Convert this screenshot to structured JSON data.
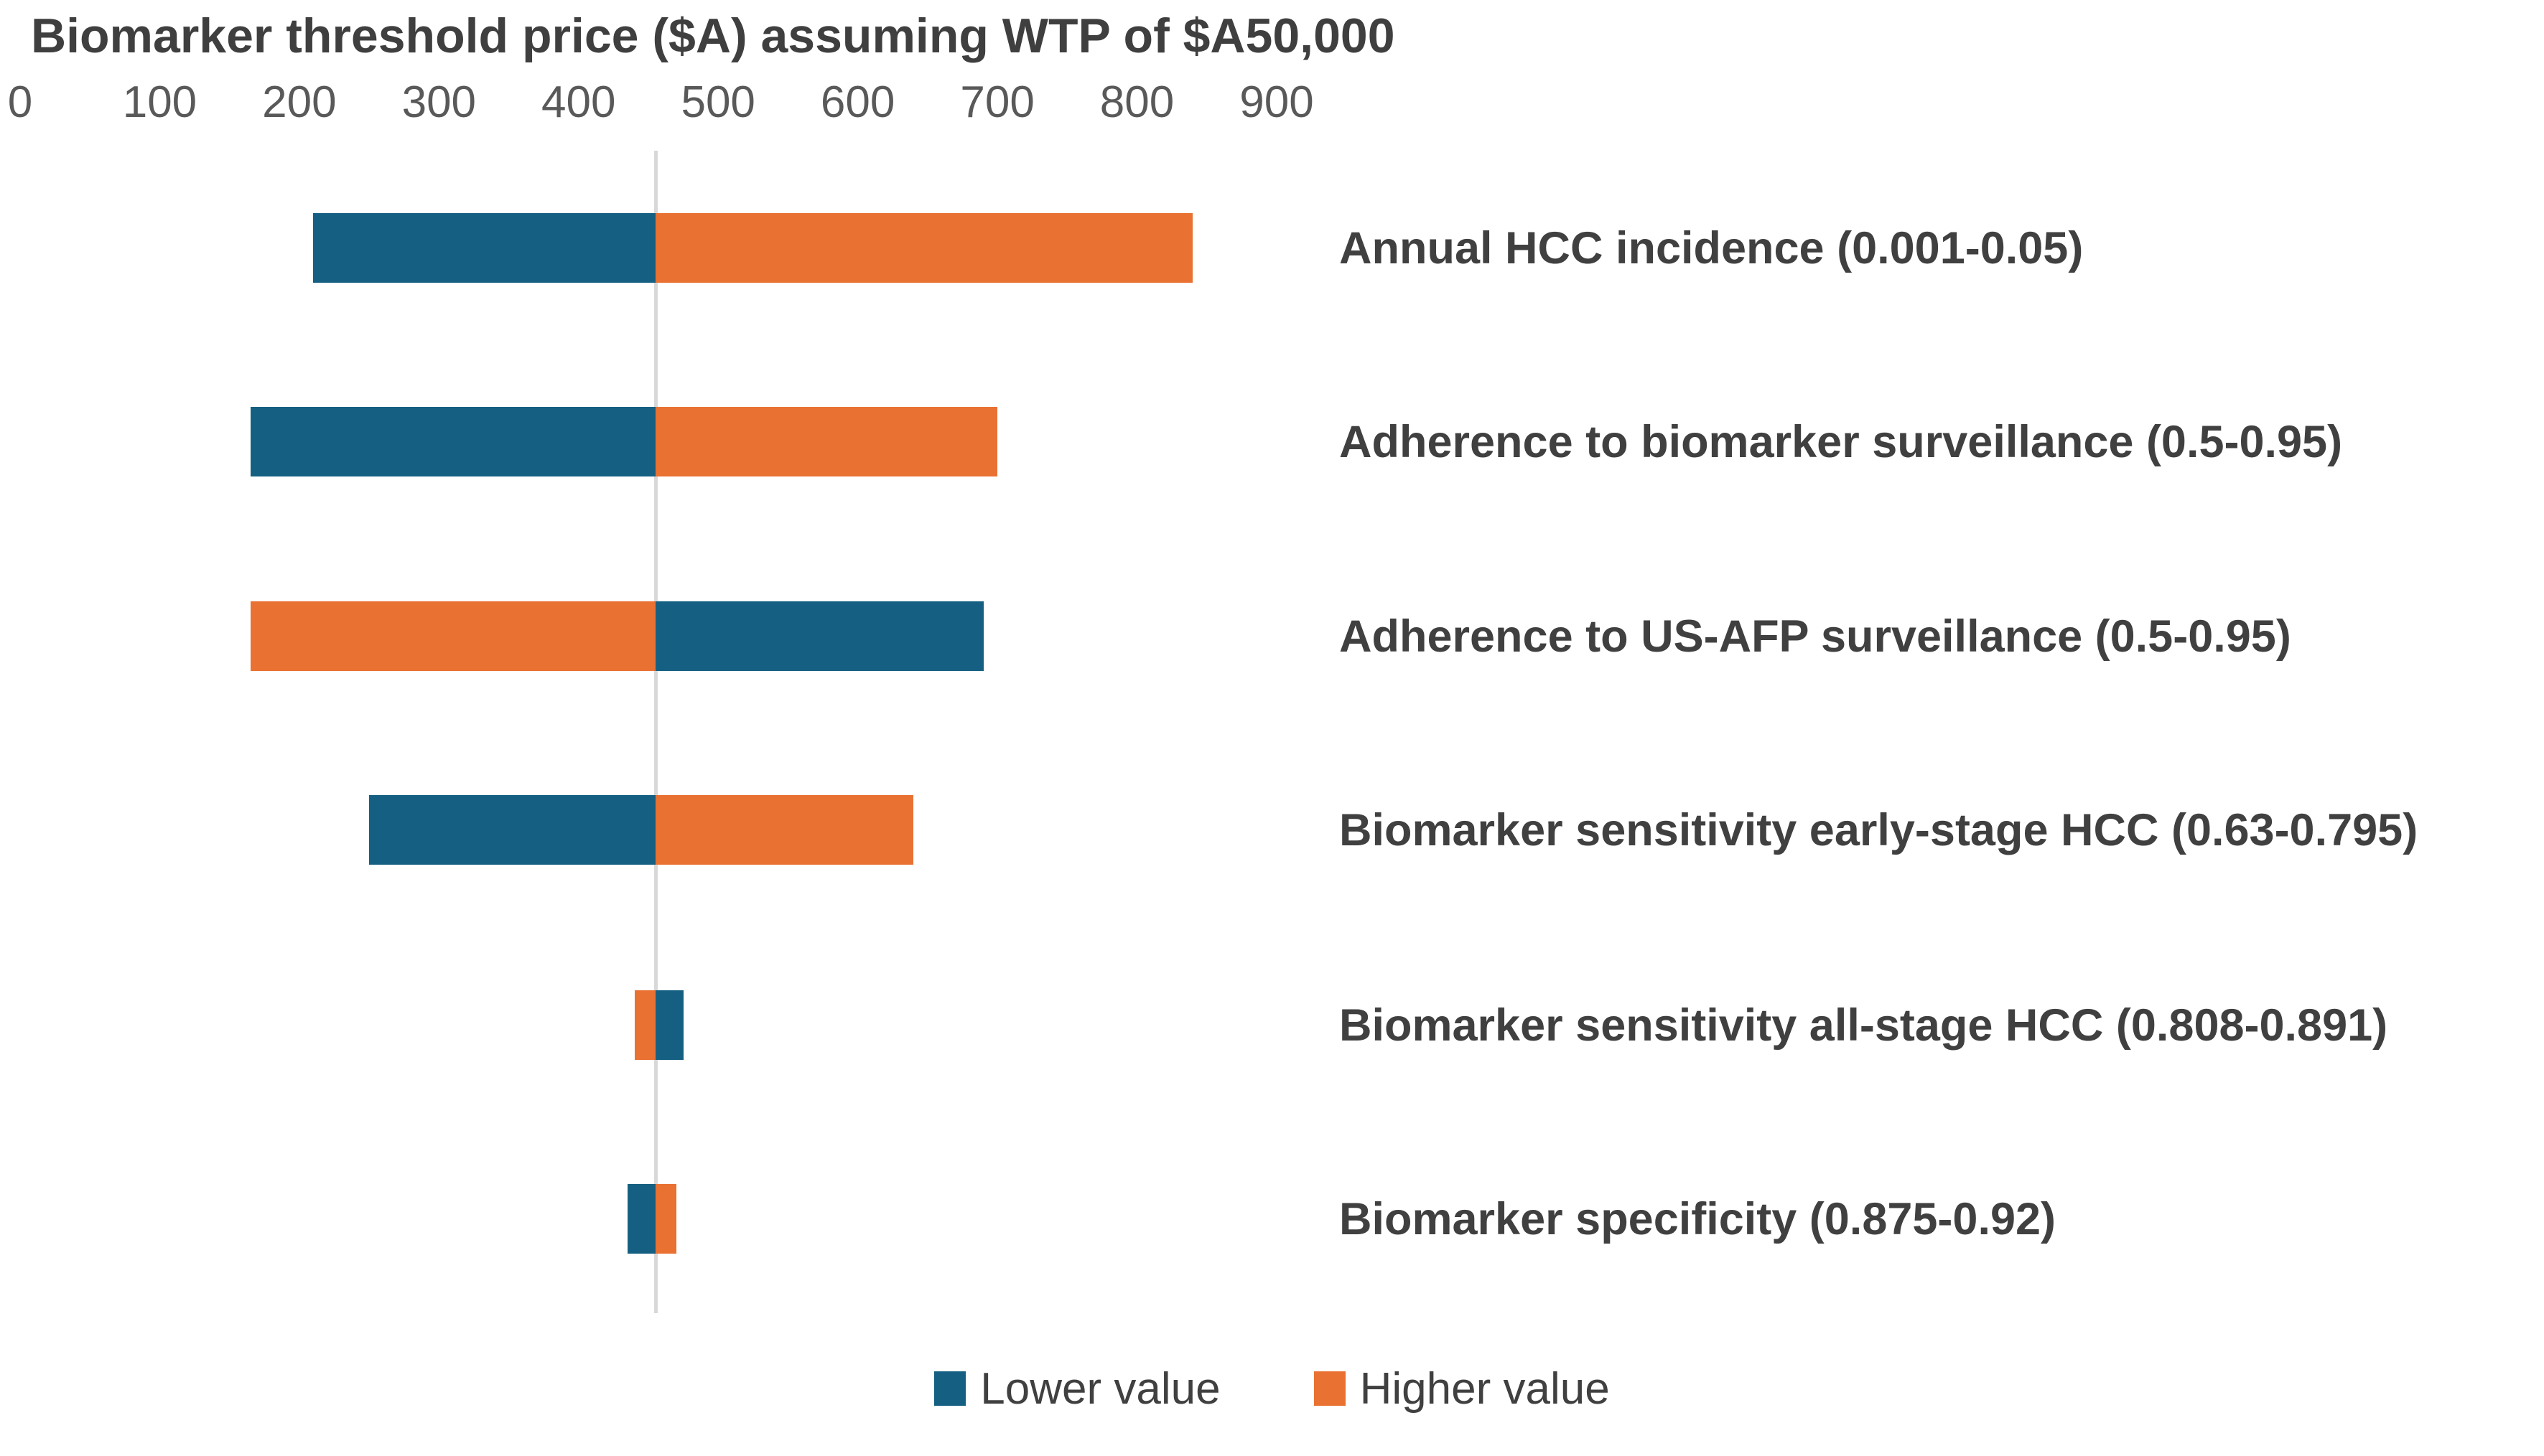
{
  "title": "Biomarker threshold price ($A) assuming WTP of $A50,000",
  "legend": {
    "lower_label": "Lower value",
    "higher_label": "Higher value"
  },
  "colors": {
    "lower": "#156082",
    "higher": "#E97132",
    "baseline_gridline": "#D8D8D8",
    "title_text": "#3F3F3F",
    "category_text": "#404040",
    "tick_text": "#595959"
  },
  "chart_data": {
    "type": "bar",
    "subtype": "tornado",
    "title": "Biomarker threshold price ($A) assuming WTP of $A50,000",
    "xlabel": "Biomarker threshold price ($A)",
    "ylabel": "",
    "x_axis": {
      "min": 0,
      "max": 940,
      "tick_interval": 100,
      "tick_labels": [
        "0",
        "100",
        "200",
        "300",
        "400",
        "500",
        "600",
        "700",
        "800",
        "900"
      ]
    },
    "base_value": 455,
    "gridlines": "baseline-only",
    "legend_position": "bottom",
    "categories": [
      "Annual HCC incidence (0.001-0.05)",
      "Adherence to biomarker surveillance (0.5-0.95)",
      "Adherence to US-AFP surveillance (0.5-0.95)",
      "Biomarker sensitivity early-stage HCC (0.63-0.795)",
      "Biomarker sensitivity all-stage HCC (0.808-0.891)",
      "Biomarker specificity (0.875-0.92)"
    ],
    "series": [
      {
        "name": "Lower value",
        "color": "#156082",
        "values": [
          210,
          165,
          690,
          250,
          475,
          435
        ]
      },
      {
        "name": "Higher value",
        "color": "#E97132",
        "values": [
          840,
          700,
          165,
          640,
          440,
          470
        ]
      }
    ]
  }
}
